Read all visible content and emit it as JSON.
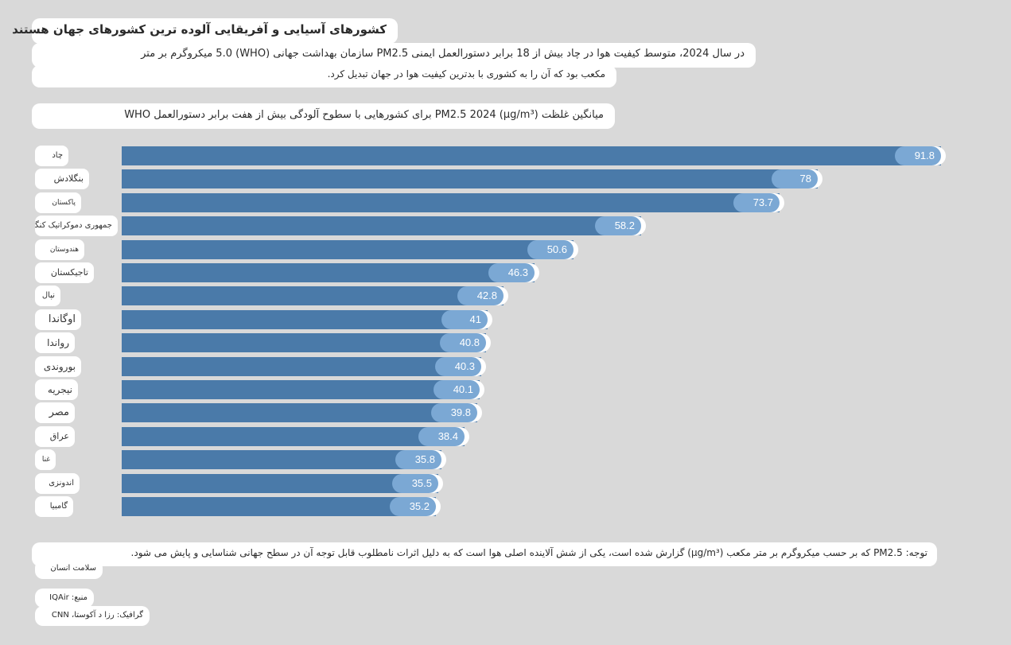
{
  "header": {
    "title": "کشورهای آسیایی و آفریقایی آلوده ترین کشورهای جهان هستند",
    "subtitle_line1": "در سال 2024، متوسط کیفیت هوا در چاد بیش از 18 برابر دستورالعمل ایمنی PM2.5 سازمان بهداشت جهانی (WHO) 5.0 میکروگرم بر متر",
    "subtitle_line2": "مکعب بود که آن را به کشوری با بدترین کیفیت هوا در جهان تبدیل کرد."
  },
  "chart_data": {
    "type": "bar",
    "orientation": "horizontal",
    "title": "میانگین غلظت (µg/m³) PM2.5 2024 برای کشورهایی با سطوح آلودگی بیش از هفت برابر دستورالعمل WHO",
    "categories": [
      "چاد",
      "بنگلادش",
      "پاکستان",
      "جمهوری دموکراتیک کنگو",
      "هندوستان",
      "تاجیکستان",
      "نپال",
      "اوگاندا",
      "رواندا",
      "بوروندی",
      "نیجریه",
      "مصر",
      "عراق",
      "غنا",
      "اندونزی",
      "گامبیا"
    ],
    "values": [
      91.8,
      78,
      73.7,
      58.2,
      50.6,
      46.3,
      42.8,
      41,
      40.8,
      40.3,
      40.1,
      39.8,
      38.4,
      35.8,
      35.5,
      35.2
    ],
    "value_labels": [
      "91.8",
      "78",
      "73.7",
      "58.2",
      "50.6",
      "46.3",
      "42.8",
      "41",
      "40.8",
      "40.3",
      "40.1",
      "39.8",
      "38.4",
      "35.8",
      "35.5",
      "35.2"
    ],
    "xlim": [
      0,
      91.8
    ],
    "bar_color": "#4a7aa9",
    "label_color": "#7ba8d4"
  },
  "footer": {
    "note": "توجه: PM2.5 که بر حسب میکروگرم بر متر مکعب (µg/m³) گزارش شده است، یکی از شش آلاینده اصلی هوا است که به دلیل اثرات نامطلوب قابل توجه آن در سطح جهانی شناسایی و پایش می شود.",
    "credit": "سلامت انسان",
    "source": "منبع: IQAir",
    "graphic": "گرافیک: رزا د آکوستا، CNN"
  },
  "colors": {
    "background": "#d9d9d9",
    "pill": "#ffffff"
  }
}
